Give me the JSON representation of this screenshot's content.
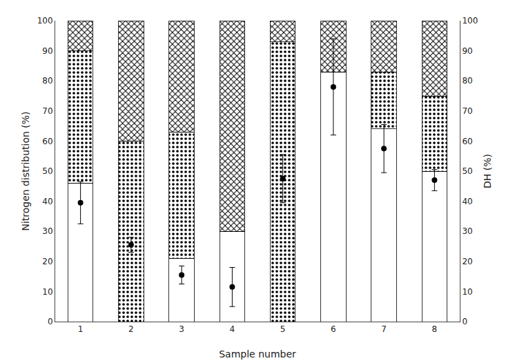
{
  "chart_data": {
    "type": "bar",
    "stacked": true,
    "xlabel": "Sample number",
    "ylabel": "Nitrogen distribution (%)",
    "y2label": "DH (%)",
    "categories": [
      "1",
      "2",
      "3",
      "4",
      "5",
      "6",
      "7",
      "8"
    ],
    "series": [
      {
        "type": "bar",
        "color": "white",
        "values": [
          46,
          0,
          21,
          30,
          0,
          83,
          64,
          50
        ]
      },
      {
        "type": "bar",
        "color": "white",
        "values": [
          44,
          60,
          42,
          0,
          93,
          0,
          19,
          25
        ]
      },
      {
        "type": "bar",
        "color": "white",
        "values": [
          10,
          40,
          37,
          70,
          7,
          17,
          17,
          25
        ]
      },
      {
        "type": "scatter",
        "axis": "y2",
        "color": "black",
        "marker": "circle",
        "values": [
          39.5,
          25.5,
          15.5,
          11.5,
          47.5,
          78.0,
          57.5,
          47.0
        ],
        "errors": [
          7.0,
          2.5,
          3.0,
          6.5,
          8.0,
          16.0,
          8.0,
          3.5
        ]
      }
    ],
    "ylim": [
      0,
      100
    ],
    "yticks": [
      0,
      10,
      20,
      30,
      40,
      50,
      60,
      70,
      80,
      90,
      100
    ],
    "y2lim": [
      0,
      100
    ],
    "y2ticks": [
      0,
      10,
      20,
      30,
      40,
      50,
      60,
      70,
      80,
      90,
      100
    ],
    "grid": false
  }
}
